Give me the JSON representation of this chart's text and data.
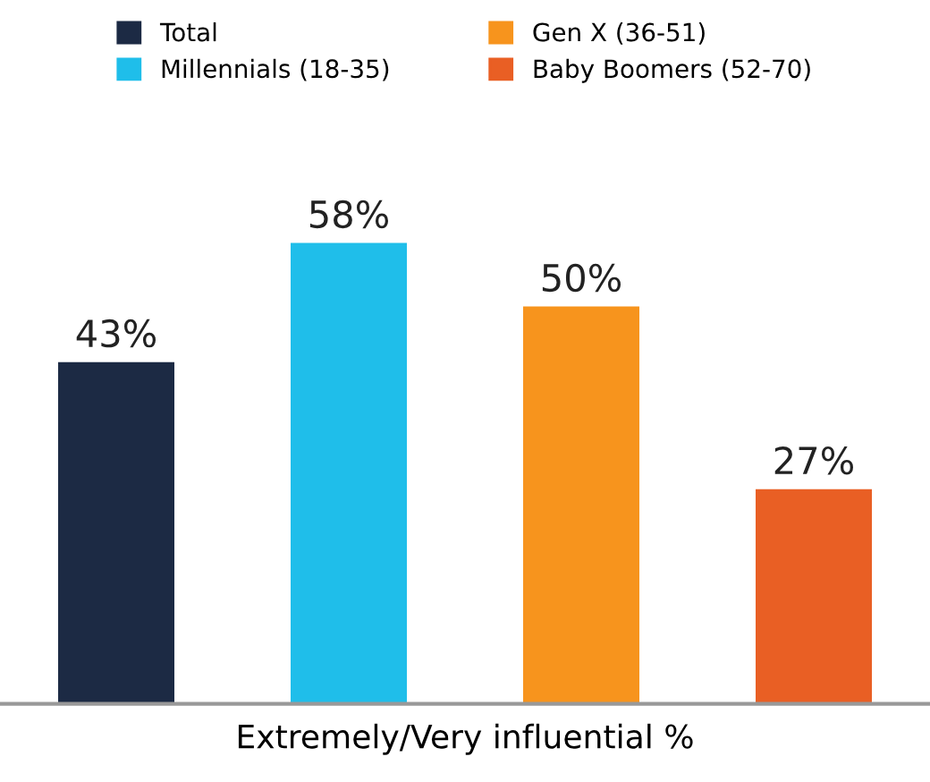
{
  "chart_data": {
    "type": "bar",
    "xlabel": "Extremely/Very influential %",
    "categories": [
      null,
      null,
      null,
      null
    ],
    "stacked": true,
    "series": [
      {
        "name": "Total",
        "color": "#1c2a44",
        "values": [
          43,
          null,
          null,
          null
        ],
        "value_labels": [
          "43%",
          null,
          null,
          null
        ]
      },
      {
        "name": "Millennials (18-35)",
        "color": "#1fbeea",
        "values": [
          null,
          58,
          null,
          null
        ],
        "value_labels": [
          null,
          "58%",
          null,
          null
        ]
      },
      {
        "name": "Gen X (36-51)",
        "color": "#f7941d",
        "values": [
          null,
          null,
          50,
          null
        ],
        "value_labels": [
          null,
          null,
          "50%",
          null
        ]
      },
      {
        "name": "Baby Boomers (52-70)",
        "color": "#e95f24",
        "values": [
          null,
          null,
          null,
          27
        ],
        "value_labels": [
          null,
          null,
          null,
          "27%"
        ]
      }
    ],
    "legend": "top",
    "tick_labels": false,
    "grid": false
  }
}
